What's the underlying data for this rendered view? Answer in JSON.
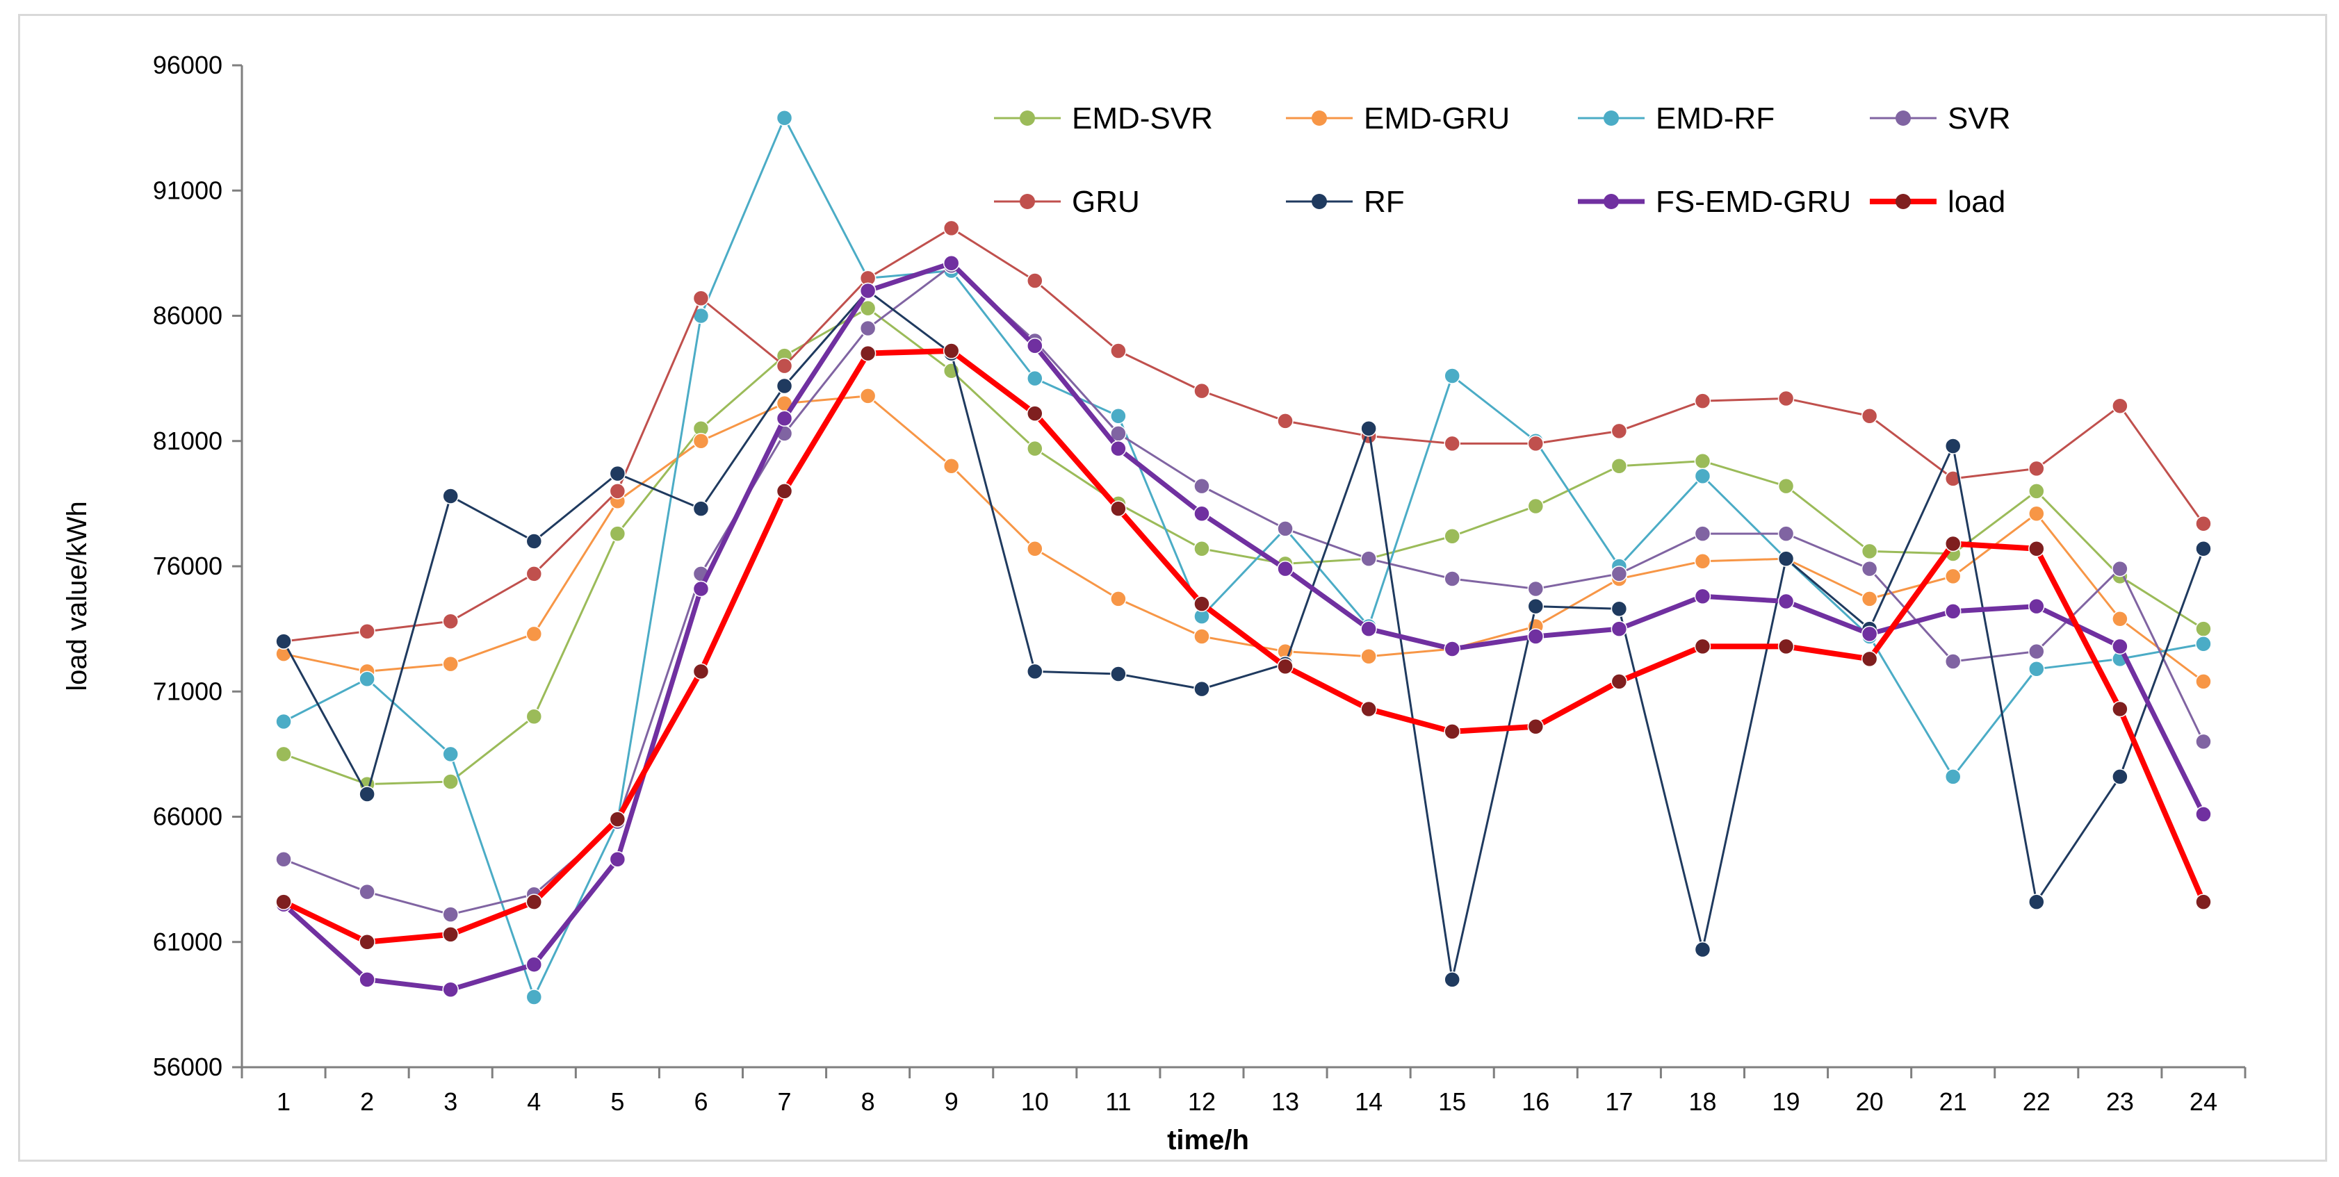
{
  "chart_data": {
    "type": "line",
    "title": "",
    "xlabel": "time/h",
    "ylabel": "load value/kWh",
    "ylim": [
      56000,
      96000
    ],
    "yticks": [
      56000,
      61000,
      66000,
      71000,
      76000,
      81000,
      86000,
      91000,
      96000
    ],
    "yticklabels": [
      "56000",
      "61000",
      "66000",
      "71000",
      "76000",
      "81000",
      "86000",
      "91000",
      "96000"
    ],
    "categories": [
      "1",
      "2",
      "3",
      "4",
      "5",
      "6",
      "7",
      "8",
      "9",
      "10",
      "11",
      "12",
      "13",
      "14",
      "15",
      "16",
      "17",
      "18",
      "19",
      "20",
      "21",
      "22",
      "23",
      "24"
    ],
    "grid": false,
    "legend_position": "top-right",
    "series": [
      {
        "name": "EMD-SVR",
        "color": "#9bbb59",
        "width": 3,
        "values": [
          68500,
          67300,
          67400,
          70000,
          77300,
          81500,
          84400,
          86300,
          83800,
          80700,
          78500,
          76700,
          76100,
          76300,
          77200,
          78400,
          80000,
          80200,
          79200,
          76600,
          76500,
          79000,
          75600,
          73500
        ]
      },
      {
        "name": "EMD-GRU",
        "color": "#f79646",
        "width": 3,
        "values": [
          72500,
          71800,
          72100,
          73300,
          78600,
          81000,
          82500,
          82800,
          80000,
          76700,
          74700,
          73200,
          72600,
          72400,
          72700,
          73600,
          75500,
          76200,
          76300,
          74700,
          75600,
          78100,
          73900,
          71400
        ]
      },
      {
        "name": "EMD-RF",
        "color": "#4bacc6",
        "width": 3,
        "values": [
          69800,
          71500,
          68500,
          58800,
          65800,
          86000,
          93900,
          87500,
          87800,
          83500,
          82000,
          74000,
          77500,
          73600,
          83600,
          81000,
          76000,
          79600,
          76300,
          73200,
          67600,
          71900,
          72300,
          72900
        ]
      },
      {
        "name": "SVR",
        "color": "#8064a2",
        "width": 3,
        "values": [
          64300,
          63000,
          62100,
          62900,
          65800,
          75700,
          81300,
          85500,
          88000,
          85000,
          81300,
          79200,
          77500,
          76300,
          75500,
          75100,
          75700,
          77300,
          77300,
          75900,
          72200,
          72600,
          75900,
          69000
        ]
      },
      {
        "name": "GRU",
        "color": "#c0504d",
        "width": 3,
        "values": [
          73000,
          73400,
          73800,
          75700,
          79000,
          86700,
          84000,
          87500,
          89500,
          87400,
          84600,
          83000,
          81800,
          81200,
          80900,
          80900,
          81400,
          82600,
          82700,
          82000,
          79500,
          79900,
          82400,
          77700
        ]
      },
      {
        "name": "RF",
        "color": "#1f3a5f",
        "width": 3,
        "values": [
          73000,
          66900,
          78800,
          77000,
          79700,
          78300,
          83200,
          87000,
          84500,
          71800,
          71700,
          71100,
          72100,
          81500,
          59500,
          74400,
          74300,
          60700,
          76300,
          73500,
          80800,
          62600,
          67600,
          76700
        ]
      },
      {
        "name": "FS-EMD-GRU",
        "color": "#7030a0",
        "width": 7,
        "values": [
          62500,
          59500,
          59100,
          60100,
          64300,
          75100,
          81900,
          87000,
          88100,
          84800,
          80700,
          78100,
          75900,
          73500,
          72700,
          73200,
          73500,
          74800,
          74600,
          73300,
          74200,
          74400,
          72800,
          66100
        ]
      },
      {
        "name": "load",
        "color": "#ff0000",
        "marker": "#7f1f1f",
        "width": 8,
        "values": [
          62600,
          61000,
          61300,
          62600,
          65900,
          71800,
          79000,
          84500,
          84600,
          82100,
          78300,
          74500,
          72000,
          70300,
          69400,
          69600,
          71400,
          72800,
          72800,
          72300,
          76900,
          76700,
          70300,
          62600
        ]
      }
    ]
  }
}
